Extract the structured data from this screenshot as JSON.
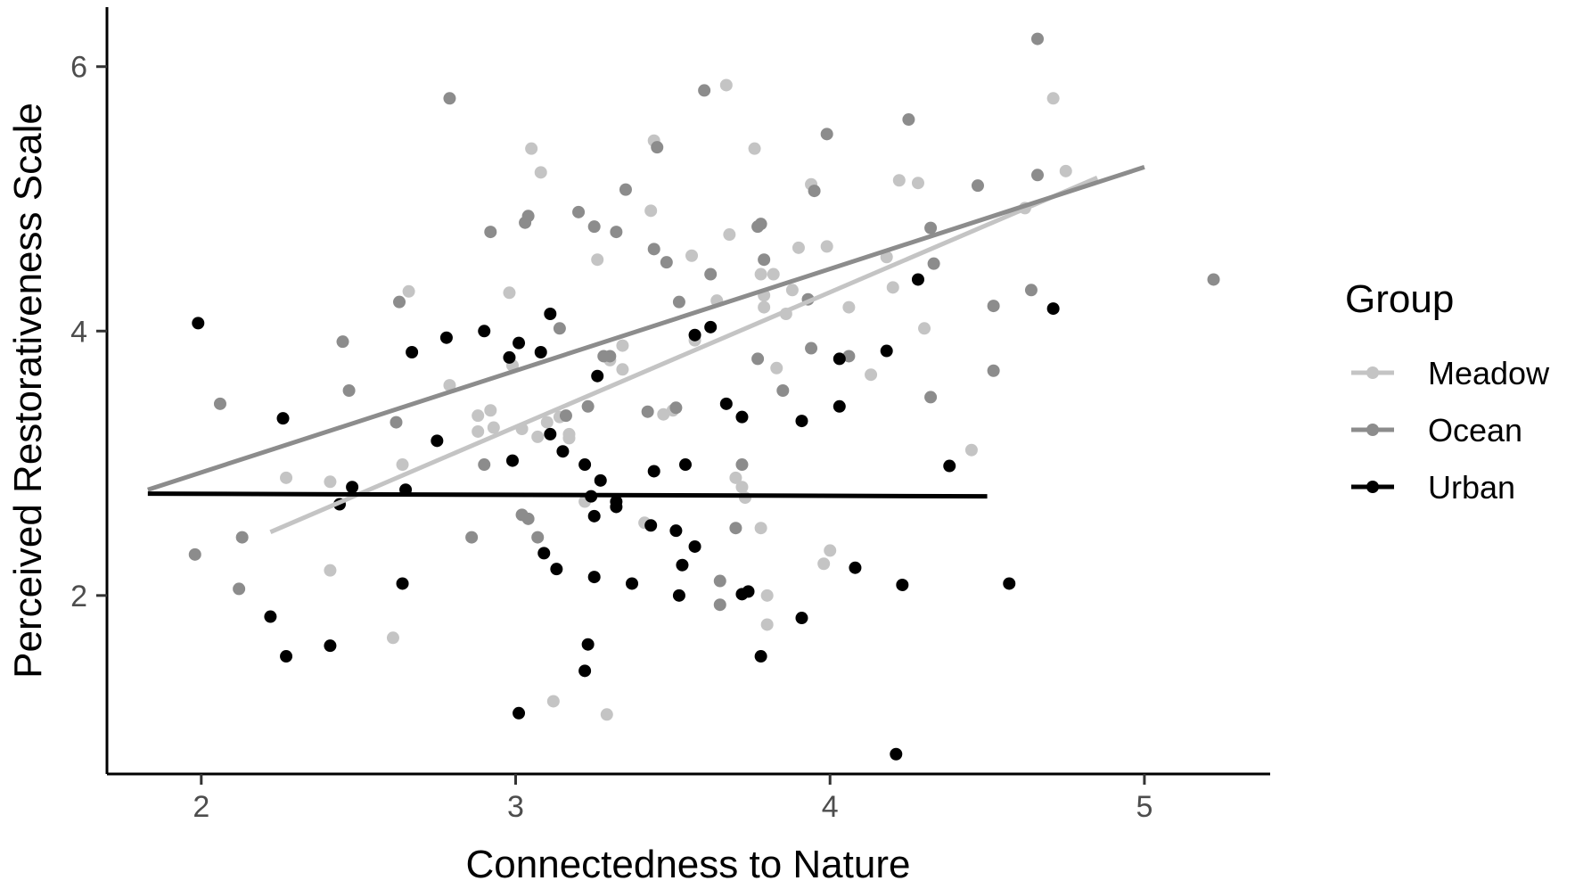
{
  "chart_data": {
    "type": "scatter",
    "title": "",
    "xlabel": "Connectedness to Nature",
    "ylabel": "Perceived Restorativeness Scale",
    "xlim": [
      1.7,
      5.4
    ],
    "ylim": [
      0.65,
      6.45
    ],
    "xticks": [
      2,
      3,
      4,
      5
    ],
    "yticks": [
      2,
      4,
      6
    ],
    "grid": false,
    "legend": {
      "title": "Group",
      "placement": "right"
    },
    "series": [
      {
        "name": "Meadow",
        "color": "#c4c4c4",
        "fit": {
          "x": [
            2.22,
            4.85
          ],
          "y": [
            2.48,
            5.16
          ]
        },
        "points": [
          [
            2.27,
            2.89
          ],
          [
            2.41,
            2.86
          ],
          [
            2.41,
            2.19
          ],
          [
            2.61,
            1.68
          ],
          [
            2.64,
            2.99
          ],
          [
            2.66,
            4.3
          ],
          [
            2.79,
            3.59
          ],
          [
            2.88,
            3.36
          ],
          [
            2.88,
            3.24
          ],
          [
            2.92,
            3.4
          ],
          [
            2.93,
            3.27
          ],
          [
            2.98,
            4.29
          ],
          [
            2.99,
            3.74
          ],
          [
            3.02,
            3.26
          ],
          [
            3.05,
            5.38
          ],
          [
            3.07,
            3.2
          ],
          [
            3.08,
            5.2
          ],
          [
            3.1,
            3.31
          ],
          [
            3.12,
            1.2
          ],
          [
            3.14,
            3.35
          ],
          [
            3.17,
            3.22
          ],
          [
            3.17,
            3.19
          ],
          [
            3.22,
            2.71
          ],
          [
            3.26,
            4.54
          ],
          [
            3.29,
            1.1
          ],
          [
            3.3,
            3.78
          ],
          [
            3.34,
            3.71
          ],
          [
            3.34,
            3.89
          ],
          [
            3.41,
            2.55
          ],
          [
            3.43,
            4.91
          ],
          [
            3.44,
            5.44
          ],
          [
            3.47,
            3.37
          ],
          [
            3.5,
            3.4
          ],
          [
            3.56,
            4.57
          ],
          [
            3.57,
            3.93
          ],
          [
            3.64,
            4.23
          ],
          [
            3.67,
            5.86
          ],
          [
            3.68,
            4.73
          ],
          [
            3.7,
            2.89
          ],
          [
            3.72,
            2.82
          ],
          [
            3.73,
            2.74
          ],
          [
            3.76,
            5.38
          ],
          [
            3.78,
            4.43
          ],
          [
            3.78,
            2.51
          ],
          [
            3.79,
            4.18
          ],
          [
            3.8,
            2.0
          ],
          [
            3.8,
            1.78
          ],
          [
            3.82,
            4.43
          ],
          [
            3.83,
            3.72
          ],
          [
            3.86,
            4.13
          ],
          [
            3.88,
            4.31
          ],
          [
            3.9,
            4.63
          ],
          [
            3.94,
            5.11
          ],
          [
            3.98,
            2.24
          ],
          [
            3.99,
            4.64
          ],
          [
            4.0,
            2.34
          ],
          [
            4.06,
            4.18
          ],
          [
            4.13,
            3.67
          ],
          [
            4.18,
            4.56
          ],
          [
            4.2,
            4.33
          ],
          [
            4.22,
            5.14
          ],
          [
            4.28,
            5.12
          ],
          [
            4.3,
            4.02
          ],
          [
            4.45,
            3.1
          ],
          [
            4.62,
            4.93
          ],
          [
            4.71,
            5.76
          ],
          [
            4.75,
            5.21
          ],
          [
            3.79,
            4.27
          ]
        ]
      },
      {
        "name": "Ocean",
        "color": "#8c8c8c",
        "fit": {
          "x": [
            1.83,
            5.0
          ],
          "y": [
            2.8,
            5.24
          ]
        },
        "points": [
          [
            1.98,
            2.31
          ],
          [
            2.06,
            3.45
          ],
          [
            2.12,
            2.05
          ],
          [
            2.13,
            2.44
          ],
          [
            2.45,
            3.92
          ],
          [
            2.47,
            3.55
          ],
          [
            2.62,
            3.31
          ],
          [
            2.63,
            4.22
          ],
          [
            2.79,
            5.76
          ],
          [
            2.86,
            2.44
          ],
          [
            2.9,
            2.99
          ],
          [
            2.92,
            4.75
          ],
          [
            3.02,
            2.61
          ],
          [
            3.03,
            4.82
          ],
          [
            3.04,
            4.87
          ],
          [
            3.04,
            2.58
          ],
          [
            3.07,
            2.44
          ],
          [
            3.14,
            4.02
          ],
          [
            3.16,
            3.36
          ],
          [
            3.2,
            4.9
          ],
          [
            3.23,
            3.43
          ],
          [
            3.25,
            4.79
          ],
          [
            3.28,
            3.81
          ],
          [
            3.3,
            3.81
          ],
          [
            3.32,
            4.75
          ],
          [
            3.35,
            5.07
          ],
          [
            3.42,
            3.39
          ],
          [
            3.44,
            4.62
          ],
          [
            3.45,
            5.39
          ],
          [
            3.48,
            4.52
          ],
          [
            3.51,
            3.42
          ],
          [
            3.52,
            4.22
          ],
          [
            3.6,
            5.82
          ],
          [
            3.62,
            4.43
          ],
          [
            3.65,
            2.11
          ],
          [
            3.65,
            1.93
          ],
          [
            3.7,
            2.51
          ],
          [
            3.72,
            2.99
          ],
          [
            3.77,
            3.79
          ],
          [
            3.77,
            4.79
          ],
          [
            3.78,
            4.81
          ],
          [
            3.79,
            4.54
          ],
          [
            3.85,
            3.55
          ],
          [
            3.93,
            4.24
          ],
          [
            3.94,
            3.87
          ],
          [
            3.95,
            5.06
          ],
          [
            3.99,
            5.49
          ],
          [
            4.06,
            3.81
          ],
          [
            4.25,
            5.6
          ],
          [
            4.32,
            3.5
          ],
          [
            4.32,
            4.78
          ],
          [
            4.33,
            4.51
          ],
          [
            4.47,
            5.1
          ],
          [
            4.52,
            4.19
          ],
          [
            4.52,
            3.7
          ],
          [
            4.64,
            4.31
          ],
          [
            4.66,
            6.21
          ],
          [
            4.66,
            5.18
          ],
          [
            5.22,
            4.39
          ]
        ]
      },
      {
        "name": "Urban",
        "color": "#000000",
        "fit": {
          "x": [
            1.83,
            4.5
          ],
          "y": [
            2.77,
            2.75
          ]
        },
        "points": [
          [
            1.99,
            4.06
          ],
          [
            2.22,
            1.84
          ],
          [
            2.26,
            3.34
          ],
          [
            2.27,
            1.54
          ],
          [
            2.41,
            1.62
          ],
          [
            2.44,
            2.69
          ],
          [
            2.48,
            2.82
          ],
          [
            2.64,
            2.09
          ],
          [
            2.65,
            2.8
          ],
          [
            2.67,
            3.84
          ],
          [
            2.75,
            3.17
          ],
          [
            2.78,
            3.95
          ],
          [
            2.9,
            4.0
          ],
          [
            2.98,
            3.8
          ],
          [
            2.99,
            3.02
          ],
          [
            3.01,
            3.91
          ],
          [
            3.01,
            1.11
          ],
          [
            3.08,
            3.84
          ],
          [
            3.09,
            2.32
          ],
          [
            3.11,
            4.13
          ],
          [
            3.11,
            3.22
          ],
          [
            3.13,
            2.2
          ],
          [
            3.15,
            3.09
          ],
          [
            3.22,
            2.99
          ],
          [
            3.22,
            1.43
          ],
          [
            3.23,
            1.63
          ],
          [
            3.24,
            2.75
          ],
          [
            3.25,
            2.6
          ],
          [
            3.25,
            2.14
          ],
          [
            3.26,
            3.66
          ],
          [
            3.27,
            2.87
          ],
          [
            3.32,
            2.67
          ],
          [
            3.32,
            2.71
          ],
          [
            3.37,
            2.09
          ],
          [
            3.43,
            2.53
          ],
          [
            3.44,
            2.94
          ],
          [
            3.51,
            2.49
          ],
          [
            3.52,
            2.0
          ],
          [
            3.53,
            2.23
          ],
          [
            3.54,
            2.99
          ],
          [
            3.57,
            2.37
          ],
          [
            3.57,
            3.97
          ],
          [
            3.62,
            4.03
          ],
          [
            3.67,
            3.45
          ],
          [
            3.72,
            2.01
          ],
          [
            3.72,
            3.35
          ],
          [
            3.74,
            2.03
          ],
          [
            3.78,
            1.54
          ],
          [
            3.91,
            3.32
          ],
          [
            3.91,
            1.83
          ],
          [
            4.03,
            3.43
          ],
          [
            4.03,
            3.79
          ],
          [
            4.08,
            2.21
          ],
          [
            4.18,
            3.85
          ],
          [
            4.21,
            0.8
          ],
          [
            4.23,
            2.08
          ],
          [
            4.28,
            4.39
          ],
          [
            4.38,
            2.98
          ],
          [
            4.57,
            2.09
          ],
          [
            4.71,
            4.17
          ]
        ]
      }
    ]
  }
}
